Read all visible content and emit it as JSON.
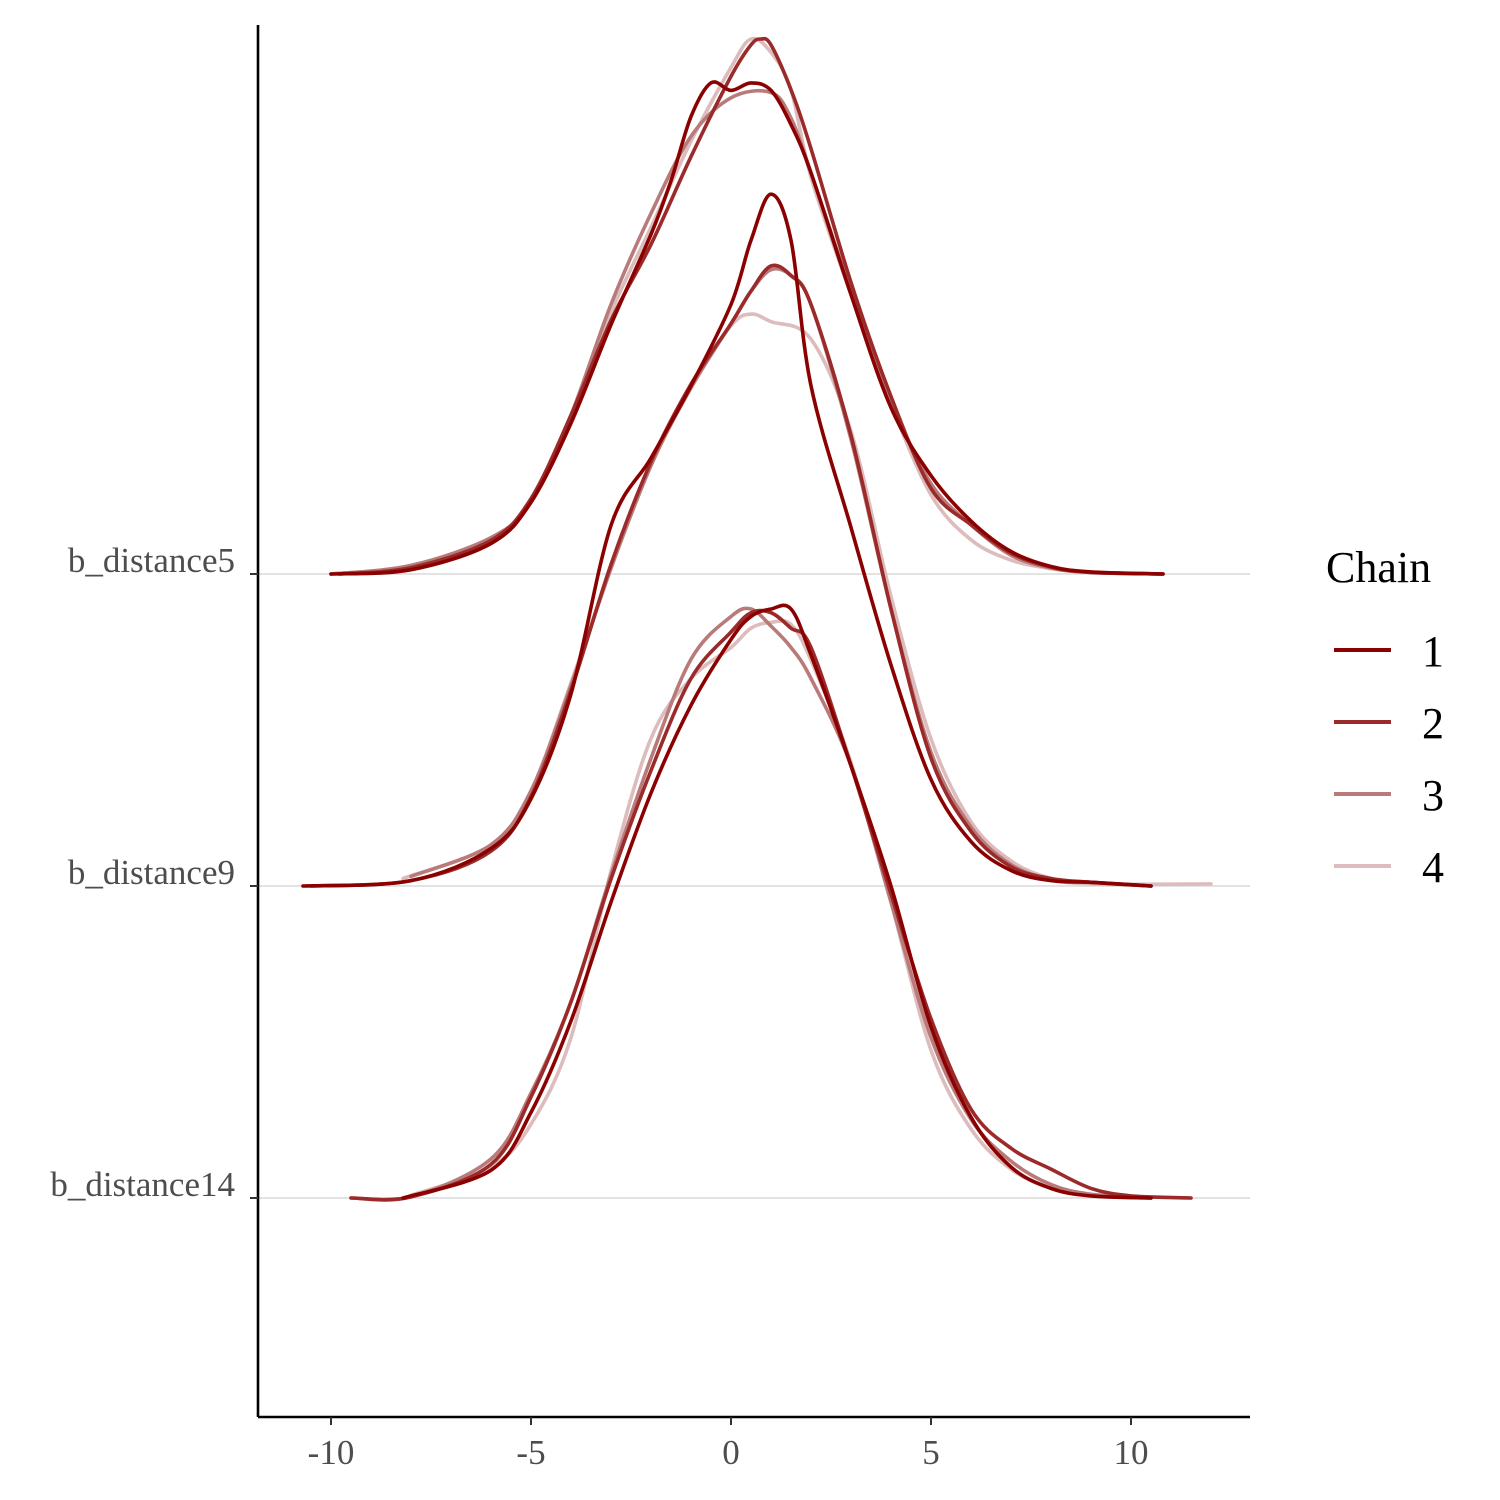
{
  "chart_data": {
    "type": "line",
    "title": "",
    "xlabel": "",
    "ylabel": "",
    "xlim": [
      -12,
      13
    ],
    "grid": false,
    "legend": {
      "title": "Chain",
      "position": "right",
      "entries": [
        "1",
        "2",
        "3",
        "4"
      ]
    },
    "x_ticks": [
      -10,
      -5,
      0,
      5,
      10
    ],
    "x_tick_labels": [
      "-10",
      "-5",
      "0",
      "5",
      "10"
    ],
    "parameters": [
      "b_distance5",
      "b_distance9",
      "b_distance14"
    ],
    "colors": {
      "1": "#8b0000",
      "2": "#9b2a2a",
      "3": "#b97a7a",
      "4": "#dcbcbc"
    },
    "series": [
      {
        "parameter": "b_distance5",
        "chain": "1",
        "points": [
          [
            -10,
            0.0
          ],
          [
            -8,
            0.008
          ],
          [
            -6,
            0.057
          ],
          [
            -5,
            0.134
          ],
          [
            -4,
            0.282
          ],
          [
            -3,
            0.466
          ],
          [
            -2,
            0.635
          ],
          [
            -1.5,
            0.735
          ],
          [
            -1,
            0.855
          ],
          [
            -0.5,
            0.918
          ],
          [
            0,
            0.904
          ],
          [
            0.5,
            0.918
          ],
          [
            1,
            0.904
          ],
          [
            1.5,
            0.84
          ],
          [
            2,
            0.75
          ],
          [
            3,
            0.522
          ],
          [
            4,
            0.311
          ],
          [
            5,
            0.184
          ],
          [
            6,
            0.099
          ],
          [
            7,
            0.042
          ],
          [
            8,
            0.014
          ],
          [
            9,
            0.004
          ],
          [
            10.8,
            0.0
          ]
        ]
      },
      {
        "parameter": "b_distance5",
        "chain": "2",
        "points": [
          [
            -9.8,
            0.0
          ],
          [
            -8,
            0.012
          ],
          [
            -6,
            0.063
          ],
          [
            -5,
            0.141
          ],
          [
            -4,
            0.297
          ],
          [
            -3,
            0.474
          ],
          [
            -2,
            0.616
          ],
          [
            -1,
            0.78
          ],
          [
            0,
            0.93
          ],
          [
            0.5,
            0.989
          ],
          [
            0.75,
            1.0
          ],
          [
            1,
            0.989
          ],
          [
            1.5,
            0.905
          ],
          [
            2,
            0.795
          ],
          [
            3,
            0.545
          ],
          [
            4,
            0.332
          ],
          [
            5,
            0.16
          ],
          [
            6,
            0.092
          ],
          [
            7,
            0.039
          ],
          [
            8,
            0.013
          ],
          [
            9,
            0.003
          ],
          [
            10.8,
            0.0
          ]
        ]
      },
      {
        "parameter": "b_distance5",
        "chain": "3",
        "points": [
          [
            -10,
            0.0
          ],
          [
            -8,
            0.016
          ],
          [
            -6,
            0.068
          ],
          [
            -5,
            0.134
          ],
          [
            -4,
            0.297
          ],
          [
            -3,
            0.504
          ],
          [
            -2,
            0.674
          ],
          [
            -1,
            0.818
          ],
          [
            0,
            0.89
          ],
          [
            1,
            0.9
          ],
          [
            1.5,
            0.852
          ],
          [
            2,
            0.75
          ],
          [
            3,
            0.529
          ],
          [
            4,
            0.325
          ],
          [
            5,
            0.169
          ],
          [
            6,
            0.092
          ],
          [
            7,
            0.035
          ],
          [
            8,
            0.011
          ],
          [
            9,
            0.003
          ],
          [
            10.8,
            0.0
          ]
        ]
      },
      {
        "parameter": "b_distance5",
        "chain": "4",
        "points": [
          [
            -10,
            0.0
          ],
          [
            -8,
            0.015
          ],
          [
            -6,
            0.065
          ],
          [
            -5,
            0.134
          ],
          [
            -4,
            0.29
          ],
          [
            -3,
            0.489
          ],
          [
            -2,
            0.648
          ],
          [
            -1,
            0.809
          ],
          [
            0,
            0.947
          ],
          [
            0.5,
            1.0
          ],
          [
            1,
            0.975
          ],
          [
            1.5,
            0.905
          ],
          [
            2,
            0.742
          ],
          [
            3,
            0.522
          ],
          [
            4,
            0.318
          ],
          [
            5,
            0.148
          ],
          [
            6,
            0.064
          ],
          [
            7,
            0.026
          ],
          [
            8,
            0.01
          ],
          [
            9,
            0.003
          ],
          [
            10.8,
            0.0
          ]
        ]
      },
      {
        "parameter": "b_distance9",
        "chain": "1",
        "points": [
          [
            -10.7,
            0.0
          ],
          [
            -8,
            0.01
          ],
          [
            -6,
            0.07
          ],
          [
            -5,
            0.163
          ],
          [
            -4,
            0.359
          ],
          [
            -3,
            0.674
          ],
          [
            -2,
            0.8
          ],
          [
            -1,
            0.935
          ],
          [
            0,
            1.087
          ],
          [
            0.5,
            1.207
          ],
          [
            1,
            1.293
          ],
          [
            1.5,
            1.207
          ],
          [
            2,
            0.935
          ],
          [
            3,
            0.67
          ],
          [
            4,
            0.413
          ],
          [
            5,
            0.199
          ],
          [
            6,
            0.083
          ],
          [
            7,
            0.029
          ],
          [
            8,
            0.01
          ],
          [
            9,
            0.007
          ],
          [
            10.5,
            0.0
          ]
        ]
      },
      {
        "parameter": "b_distance9",
        "chain": "2",
        "points": [
          [
            -10.5,
            0.0
          ],
          [
            -8,
            0.01
          ],
          [
            -6,
            0.065
          ],
          [
            -5,
            0.167
          ],
          [
            -4,
            0.366
          ],
          [
            -3,
            0.601
          ],
          [
            -2,
            0.793
          ],
          [
            -1,
            0.938
          ],
          [
            0,
            1.051
          ],
          [
            0.5,
            1.112
          ],
          [
            1,
            1.159
          ],
          [
            1.5,
            1.141
          ],
          [
            2,
            1.087
          ],
          [
            3,
            0.842
          ],
          [
            4,
            0.518
          ],
          [
            5,
            0.239
          ],
          [
            6,
            0.102
          ],
          [
            7,
            0.036
          ],
          [
            8,
            0.014
          ],
          [
            9,
            0.007
          ],
          [
            10.5,
            0.0
          ]
        ]
      },
      {
        "parameter": "b_distance9",
        "chain": "3",
        "points": [
          [
            -8,
            0.018
          ],
          [
            -6,
            0.077
          ],
          [
            -5,
            0.178
          ],
          [
            -4,
            0.375
          ],
          [
            -3,
            0.594
          ],
          [
            -2,
            0.786
          ],
          [
            -1,
            0.931
          ],
          [
            0,
            1.051
          ],
          [
            0.5,
            1.112
          ],
          [
            1,
            1.152
          ],
          [
            1.5,
            1.141
          ],
          [
            2,
            1.087
          ],
          [
            3,
            0.835
          ],
          [
            4,
            0.518
          ],
          [
            5,
            0.25
          ],
          [
            6,
            0.11
          ],
          [
            7,
            0.04
          ],
          [
            8,
            0.013
          ],
          [
            9,
            0.007
          ],
          [
            10.5,
            0.0
          ]
        ]
      },
      {
        "parameter": "b_distance9",
        "chain": "4",
        "points": [
          [
            -8.2,
            0.014
          ],
          [
            -6,
            0.077
          ],
          [
            -5,
            0.178
          ],
          [
            -4,
            0.38
          ],
          [
            -3,
            0.594
          ],
          [
            -2,
            0.786
          ],
          [
            -1,
            0.935
          ],
          [
            0,
            1.047
          ],
          [
            0.5,
            1.069
          ],
          [
            1,
            1.055
          ],
          [
            2,
            1.022
          ],
          [
            3,
            0.85
          ],
          [
            4,
            0.541
          ],
          [
            5,
            0.275
          ],
          [
            6,
            0.12
          ],
          [
            7,
            0.047
          ],
          [
            8,
            0.014
          ],
          [
            9,
            0.004
          ],
          [
            12,
            0.004
          ]
        ]
      },
      {
        "parameter": "b_distance14",
        "chain": "1",
        "points": [
          [
            -8.2,
            0.0
          ],
          [
            -6,
            0.052
          ],
          [
            -5,
            0.16
          ],
          [
            -4,
            0.331
          ],
          [
            -3,
            0.553
          ],
          [
            -2,
            0.757
          ],
          [
            -1,
            0.921
          ],
          [
            0,
            1.044
          ],
          [
            0.5,
            1.087
          ],
          [
            1,
            1.101
          ],
          [
            1.5,
            1.101
          ],
          [
            2,
            1.015
          ],
          [
            3,
            0.808
          ],
          [
            4,
            0.583
          ],
          [
            5,
            0.32
          ],
          [
            6,
            0.151
          ],
          [
            7,
            0.058
          ],
          [
            8,
            0.018
          ],
          [
            9,
            0.004
          ],
          [
            10.5,
            0.0
          ]
        ]
      },
      {
        "parameter": "b_distance14",
        "chain": "2",
        "points": [
          [
            -9.5,
            0.0
          ],
          [
            -8,
            0.002
          ],
          [
            -6,
            0.063
          ],
          [
            -5,
            0.189
          ],
          [
            -4,
            0.367
          ],
          [
            -3,
            0.596
          ],
          [
            -2,
            0.799
          ],
          [
            -1,
            0.971
          ],
          [
            0,
            1.058
          ],
          [
            0.5,
            1.094
          ],
          [
            1,
            1.094
          ],
          [
            1.5,
            1.065
          ],
          [
            2,
            1.029
          ],
          [
            3,
            0.808
          ],
          [
            4,
            0.568
          ],
          [
            5,
            0.335
          ],
          [
            6,
            0.166
          ],
          [
            7,
            0.093
          ],
          [
            8,
            0.054
          ],
          [
            9,
            0.018
          ],
          [
            10,
            0.004
          ],
          [
            11.5,
            0.0
          ]
        ]
      },
      {
        "parameter": "b_distance14",
        "chain": "3",
        "points": [
          [
            -9.5,
            0.0
          ],
          [
            -8,
            0.002
          ],
          [
            -6,
            0.073
          ],
          [
            -5,
            0.196
          ],
          [
            -4,
            0.367
          ],
          [
            -3,
            0.604
          ],
          [
            -2,
            0.822
          ],
          [
            -1,
            1.007
          ],
          [
            0,
            1.087
          ],
          [
            0.5,
            1.101
          ],
          [
            1,
            1.069
          ],
          [
            1.5,
            1.029
          ],
          [
            2,
            0.971
          ],
          [
            3,
            0.808
          ],
          [
            4,
            0.553
          ],
          [
            5,
            0.3
          ],
          [
            6,
            0.147
          ],
          [
            7,
            0.069
          ],
          [
            8,
            0.025
          ],
          [
            9,
            0.007
          ],
          [
            10.5,
            0.0
          ]
        ]
      },
      {
        "parameter": "b_distance14",
        "chain": "4",
        "points": [
          [
            -8,
            0.005
          ],
          [
            -6,
            0.058
          ],
          [
            -5,
            0.138
          ],
          [
            -4,
            0.3
          ],
          [
            -3,
            0.611
          ],
          [
            -2,
            0.859
          ],
          [
            -1,
            0.971
          ],
          [
            0,
            1.029
          ],
          [
            0.5,
            1.065
          ],
          [
            1,
            1.076
          ],
          [
            1.5,
            1.072
          ],
          [
            2,
            1.005
          ],
          [
            3,
            0.814
          ],
          [
            4,
            0.553
          ],
          [
            5,
            0.276
          ],
          [
            6,
            0.129
          ],
          [
            7,
            0.054
          ],
          [
            8,
            0.018
          ],
          [
            9,
            0.004
          ],
          [
            10.5,
            0.0
          ]
        ]
      }
    ]
  }
}
